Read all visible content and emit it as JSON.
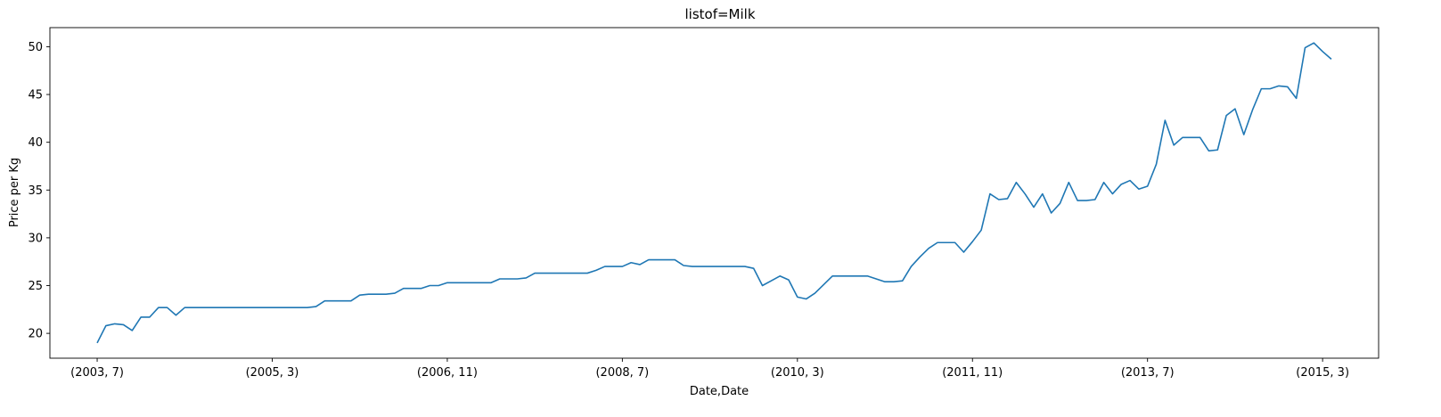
{
  "chart_data": {
    "type": "line",
    "title": "listof=Milk",
    "xlabel": "Date,Date",
    "ylabel": "Price per Kg",
    "ylim": [
      17.4,
      52.0
    ],
    "yticks": [
      20,
      25,
      30,
      35,
      40,
      45,
      50
    ],
    "grid": false,
    "legend": "none",
    "x_tick_labels": [
      "(2003, 7)",
      "(2005, 3)",
      "(2006, 11)",
      "(2008, 7)",
      "(2010, 3)",
      "(2011, 11)",
      "(2013, 7)",
      "(2015, 3)"
    ],
    "x_tick_index": [
      0,
      20,
      40,
      60,
      80,
      100,
      120,
      140
    ],
    "series": [
      {
        "color": "#1f77b4",
        "values": [
          19.0,
          20.8,
          21.0,
          20.9,
          20.3,
          21.7,
          21.7,
          22.7,
          22.7,
          21.9,
          22.7,
          22.7,
          22.7,
          22.7,
          22.7,
          22.7,
          22.7,
          22.7,
          22.7,
          22.7,
          22.7,
          22.7,
          22.7,
          22.7,
          22.7,
          22.8,
          23.4,
          23.4,
          23.4,
          23.4,
          24.0,
          24.1,
          24.1,
          24.1,
          24.2,
          24.7,
          24.7,
          24.7,
          25.0,
          25.0,
          25.3,
          25.3,
          25.3,
          25.3,
          25.3,
          25.3,
          25.7,
          25.7,
          25.7,
          25.8,
          26.3,
          26.3,
          26.3,
          26.3,
          26.3,
          26.3,
          26.3,
          26.6,
          27.0,
          27.0,
          27.0,
          27.4,
          27.2,
          27.7,
          27.7,
          27.7,
          27.7,
          27.1,
          27.0,
          27.0,
          27.0,
          27.0,
          27.0,
          27.0,
          27.0,
          26.8,
          25.0,
          25.5,
          26.0,
          25.6,
          23.8,
          23.6,
          24.2,
          25.1,
          26.0,
          26.0,
          26.0,
          26.0,
          26.0,
          25.7,
          25.4,
          25.4,
          25.5,
          27.0,
          28.0,
          28.9,
          29.5,
          29.5,
          29.5,
          28.5,
          29.6,
          30.8,
          34.6,
          34.0,
          34.1,
          35.8,
          34.6,
          33.2,
          34.6,
          32.6,
          33.6,
          35.8,
          33.9,
          33.9,
          34.0,
          35.8,
          34.6,
          35.6,
          36.0,
          35.1,
          35.4,
          37.7,
          42.3,
          39.7,
          40.5,
          40.5,
          40.5,
          39.1,
          39.2,
          42.8,
          43.5,
          40.8,
          43.4,
          45.6,
          45.6,
          45.9,
          45.8,
          44.6,
          49.9,
          50.4,
          49.5,
          48.7
        ]
      }
    ]
  }
}
